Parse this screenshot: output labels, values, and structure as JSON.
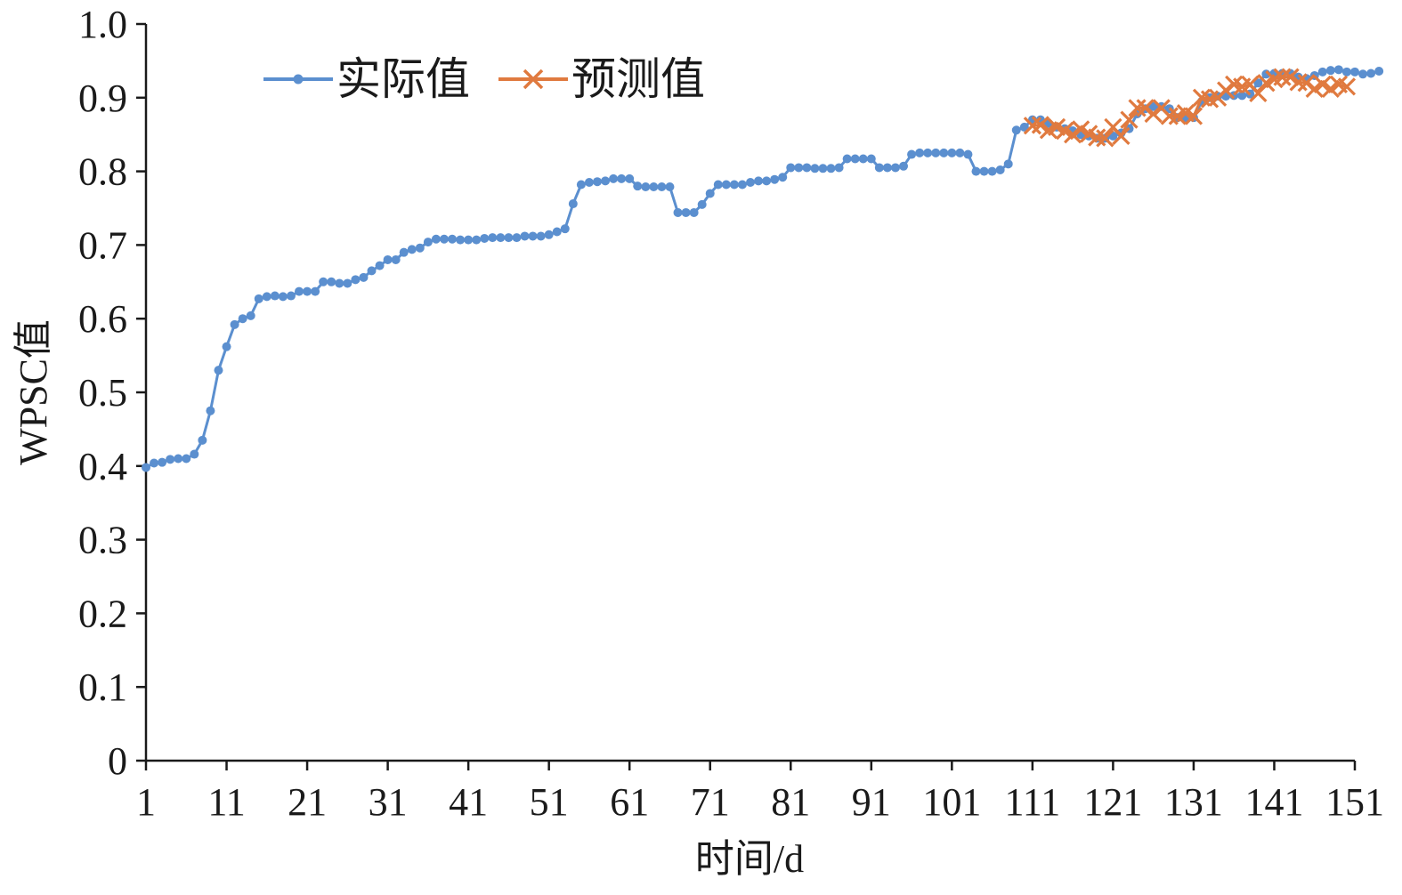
{
  "chart_data": {
    "type": "line",
    "xlabel": "时间/d",
    "ylabel": "WPSC值",
    "xlim": [
      1,
      151
    ],
    "ylim": [
      0,
      1.0
    ],
    "x_ticks": [
      "1",
      "11",
      "21",
      "31",
      "41",
      "51",
      "61",
      "71",
      "81",
      "91",
      "101",
      "111",
      "121",
      "131",
      "141",
      "151"
    ],
    "y_ticks": [
      "0",
      "0.1",
      "0.2",
      "0.3",
      "0.4",
      "0.5",
      "0.6",
      "0.7",
      "0.8",
      "0.9",
      "1.0"
    ],
    "grid": false,
    "legend_position": "top-left",
    "series": [
      {
        "name": "实际值",
        "color": "#5b8fcf",
        "marker": "circle",
        "x_start": 1,
        "values": [
          0.398,
          0.404,
          0.405,
          0.409,
          0.41,
          0.41,
          0.416,
          0.435,
          0.475,
          0.53,
          0.562,
          0.592,
          0.6,
          0.604,
          0.627,
          0.63,
          0.631,
          0.63,
          0.631,
          0.637,
          0.637,
          0.637,
          0.65,
          0.65,
          0.648,
          0.648,
          0.653,
          0.656,
          0.665,
          0.672,
          0.68,
          0.68,
          0.69,
          0.694,
          0.696,
          0.704,
          0.708,
          0.708,
          0.708,
          0.707,
          0.707,
          0.707,
          0.709,
          0.71,
          0.71,
          0.71,
          0.71,
          0.712,
          0.712,
          0.712,
          0.714,
          0.718,
          0.722,
          0.756,
          0.782,
          0.785,
          0.786,
          0.787,
          0.79,
          0.79,
          0.79,
          0.78,
          0.779,
          0.779,
          0.779,
          0.779,
          0.744,
          0.744,
          0.744,
          0.755,
          0.77,
          0.782,
          0.782,
          0.782,
          0.782,
          0.785,
          0.787,
          0.787,
          0.789,
          0.792,
          0.805,
          0.805,
          0.805,
          0.804,
          0.804,
          0.804,
          0.805,
          0.817,
          0.817,
          0.817,
          0.817,
          0.805,
          0.805,
          0.805,
          0.807,
          0.823,
          0.825,
          0.825,
          0.825,
          0.825,
          0.825,
          0.825,
          0.823,
          0.8,
          0.8,
          0.8,
          0.802,
          0.81,
          0.856,
          0.86,
          0.87,
          0.87,
          0.865,
          0.86,
          0.858,
          0.855,
          0.85,
          0.848,
          0.845,
          0.845,
          0.848,
          0.852,
          0.858,
          0.878,
          0.885,
          0.888,
          0.888,
          0.885,
          0.873,
          0.873,
          0.873,
          0.895,
          0.9,
          0.902,
          0.902,
          0.903,
          0.903,
          0.905,
          0.92,
          0.932,
          0.933,
          0.933,
          0.933,
          0.928,
          0.926,
          0.93,
          0.935,
          0.937,
          0.938,
          0.935,
          0.935,
          0.932,
          0.933,
          0.936
        ]
      },
      {
        "name": "预测值",
        "color": "#e07a3f",
        "marker": "x",
        "x_start": 111,
        "values": [
          0.862,
          0.863,
          0.856,
          0.86,
          0.855,
          0.85,
          0.857,
          0.851,
          0.846,
          0.845,
          0.86,
          0.848,
          0.87,
          0.886,
          0.886,
          0.878,
          0.886,
          0.875,
          0.875,
          0.879,
          0.875,
          0.9,
          0.898,
          0.9,
          0.91,
          0.918,
          0.915,
          0.918,
          0.906,
          0.92,
          0.925,
          0.928,
          0.928,
          0.921,
          0.92,
          0.912,
          0.918,
          0.912,
          0.918,
          0.915
        ]
      }
    ]
  }
}
